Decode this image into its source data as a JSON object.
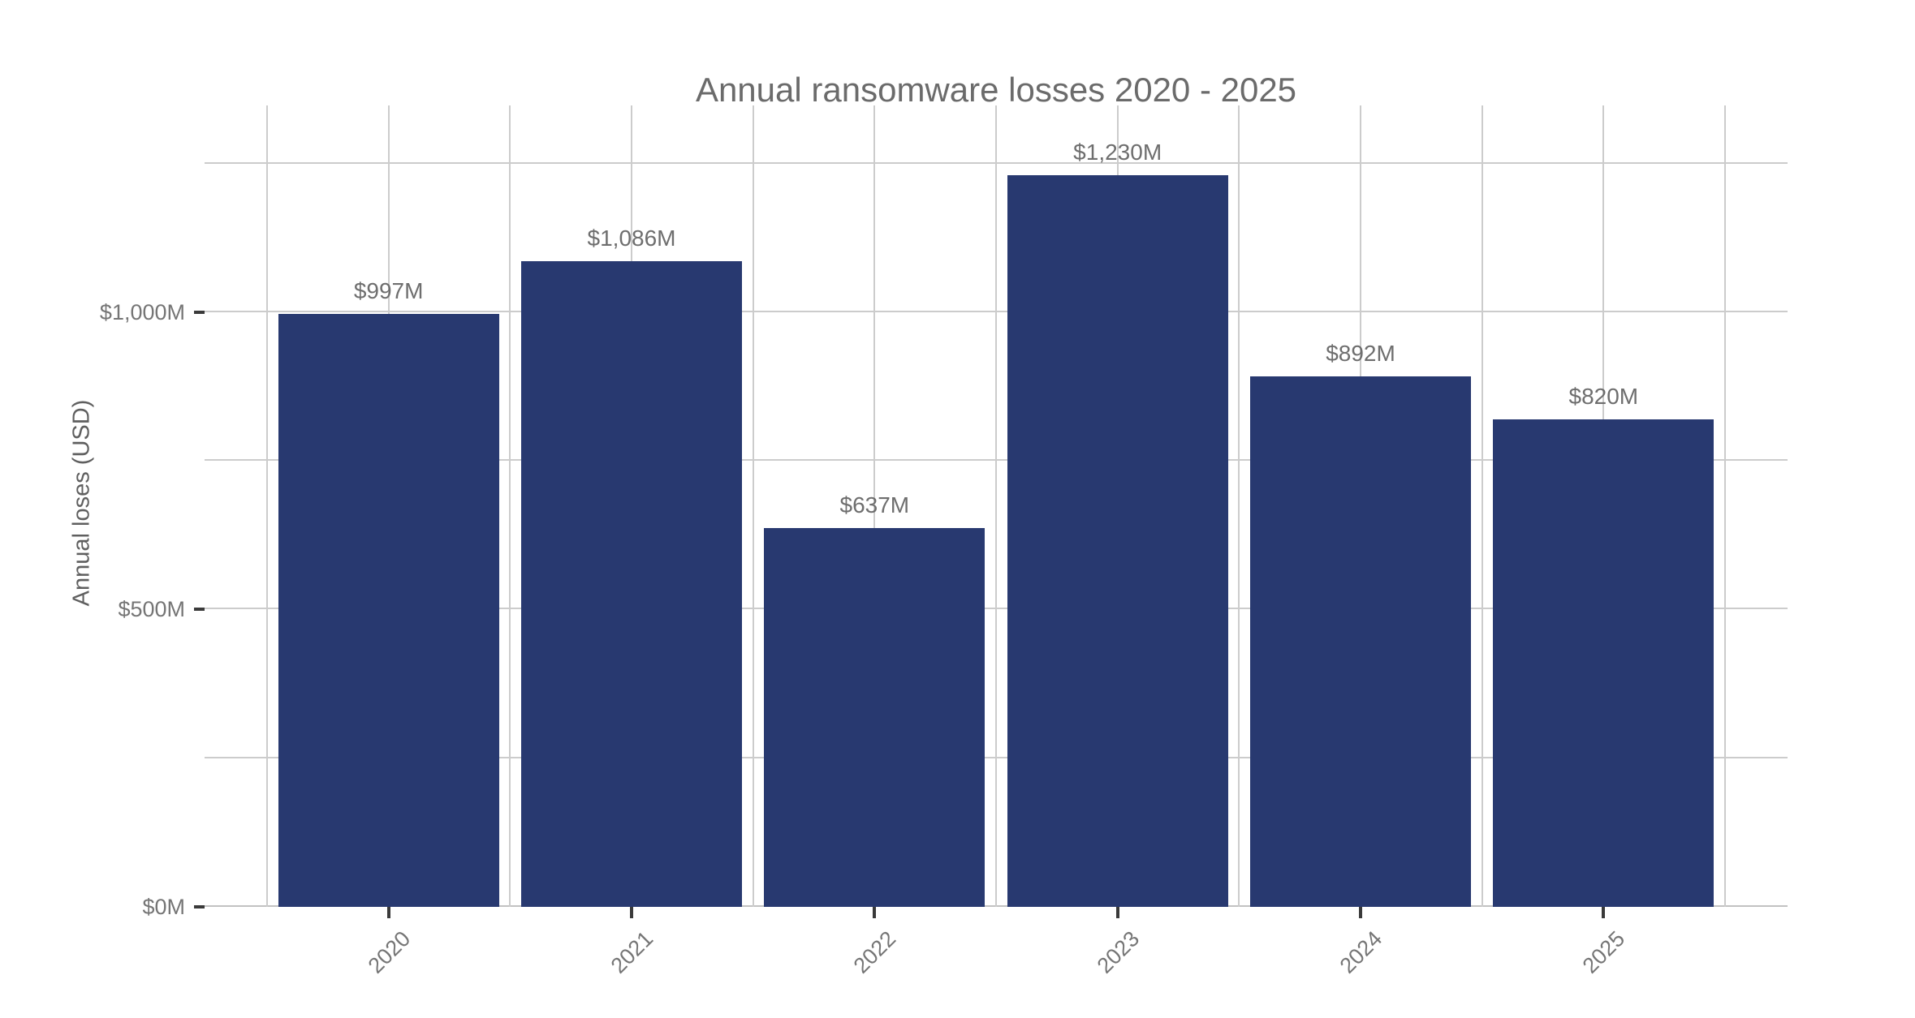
{
  "chart_data": {
    "type": "bar",
    "title": "Annual ransomware losses 2020 - 2025",
    "ylabel": "Annual loses (USD)",
    "xlabel": "",
    "categories": [
      "2020",
      "2021",
      "2022",
      "2023",
      "2024",
      "2025"
    ],
    "values": [
      997,
      1086,
      637,
      1230,
      892,
      820
    ],
    "value_labels": [
      "$997M",
      "$1,086M",
      "$637M",
      "$1,230M",
      "$892M",
      "$820M"
    ],
    "y_ticks": [
      {
        "value": 0,
        "label": "$0M"
      },
      {
        "value": 500,
        "label": "$500M"
      },
      {
        "value": 1000,
        "label": "$1,000M"
      }
    ],
    "y_gridlines": [
      0,
      250,
      500,
      750,
      1000,
      1250
    ],
    "ylim": [
      0,
      1348
    ],
    "grid": true,
    "legend": "none",
    "bar_color": "#283970",
    "gridline_color": "#cccccc",
    "baseline_color": "#c2c2c2",
    "tick_mark_color": "#3a3a3a",
    "title_color": "#6b6b6b",
    "axis_title_color": "#5f5f5f",
    "tick_label_color": "#757575",
    "value_label_color": "#6e6e6e"
  }
}
